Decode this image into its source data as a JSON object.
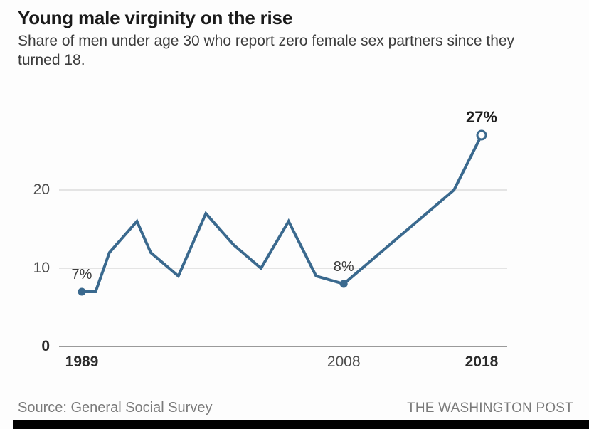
{
  "header": {
    "title": "Young male virginity on the rise",
    "subtitle": "Share of men under age 30 who report zero female sex partners since they turned 18."
  },
  "chart_data": {
    "type": "line",
    "title": "Young male virginity on the rise",
    "subtitle": "Share of men under age 30 who report zero female sex partners since they turned 18.",
    "unit": "percent of men under 30",
    "x": [
      1989,
      1990,
      1991,
      1993,
      1994,
      1996,
      1998,
      2000,
      2002,
      2004,
      2006,
      2008,
      2010,
      2012,
      2014,
      2016,
      2018
    ],
    "values": [
      7,
      7,
      12,
      16,
      12,
      9,
      17,
      13,
      10,
      16,
      9,
      8,
      11,
      14,
      17,
      20,
      27
    ],
    "xlim": [
      1987.4,
      2019.9
    ],
    "ylim": [
      0,
      30
    ],
    "yticks": [
      {
        "value": 0,
        "label": "0",
        "bold": true
      },
      {
        "value": 10,
        "label": "10",
        "bold": false
      },
      {
        "value": 20,
        "label": "20",
        "bold": false
      }
    ],
    "xticks": [
      {
        "year": 1989,
        "label": "1989",
        "bold": true
      },
      {
        "year": 2008,
        "label": "2008",
        "bold": false
      },
      {
        "year": 2018,
        "label": "2018",
        "bold": true
      }
    ],
    "grid": "horizontal gridlines at 10 and 20, dark baseline at 0, no vertical gridlines",
    "legend": "none",
    "line_color": "#3a698e",
    "annotations": [
      {
        "year": 1989,
        "value": 7,
        "label": "7%",
        "marker": "filled",
        "bold": false
      },
      {
        "year": 2008,
        "value": 8,
        "label": "8%",
        "marker": "filled",
        "bold": false
      },
      {
        "year": 2018,
        "value": 27,
        "label": "27%",
        "marker": "open",
        "bold": true
      }
    ]
  },
  "footer": {
    "source": "Source: General Social Survey",
    "credit": "THE WASHINGTON POST"
  }
}
